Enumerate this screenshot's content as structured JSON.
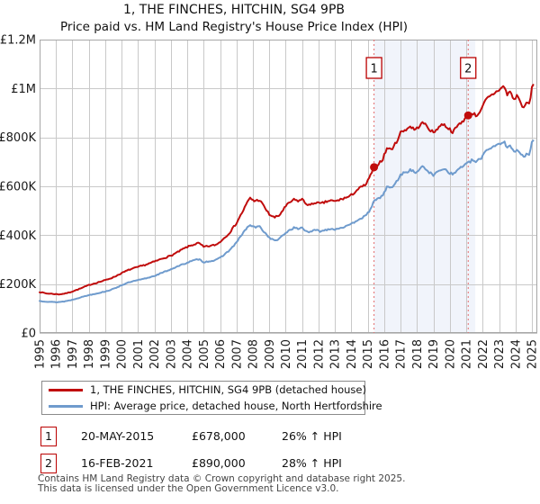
{
  "title": {
    "line1": "1, THE FINCHES, HITCHIN, SG4 9PB",
    "line2": "Price paid vs. HM Land Registry's House Price Index (HPI)"
  },
  "chart_data": {
    "type": "line",
    "title": "1, THE FINCHES, HITCHIN, SG4 9PB — Price paid vs. HPI",
    "value_unit": "GBP thousands",
    "x_axis": {
      "min": 1995,
      "max": 2025.33,
      "ticks": [
        1995,
        1996,
        1997,
        1998,
        1999,
        2000,
        2001,
        2002,
        2003,
        2004,
        2005,
        2006,
        2007,
        2008,
        2009,
        2010,
        2011,
        2012,
        2013,
        2014,
        2015,
        2016,
        2017,
        2018,
        2019,
        2020,
        2021,
        2022,
        2023,
        2024,
        2025
      ]
    },
    "y_axis": {
      "min": 0,
      "max": 1200,
      "ticks": [
        {
          "v": 0,
          "label": "£0"
        },
        {
          "v": 200,
          "label": "£200K"
        },
        {
          "v": 400,
          "label": "£400K"
        },
        {
          "v": 600,
          "label": "£600K"
        },
        {
          "v": 800,
          "label": "£800K"
        },
        {
          "v": 1000,
          "label": "£1M"
        },
        {
          "v": 1200,
          "label": "£1.2M"
        }
      ]
    },
    "grid": true,
    "legend_position": "bottom",
    "styles": {
      "grid_color": "#c9c9c9",
      "border_color": "#a6a6a6",
      "shade_color": "#f1f4fb",
      "dashed_line_color": "#e46d6d",
      "marker_color": "#c00c0c",
      "flag_border_color": "#bb0000",
      "tick_label_color": "#1a1a1a"
    },
    "shaded_region": {
      "from": 2015.38,
      "to": 2021.55
    },
    "sales": [
      {
        "n": "1",
        "year": 2015.38,
        "value": 678,
        "date": "20-MAY-2015",
        "price_label": "£678,000"
      },
      {
        "n": "2",
        "year": 2021.12,
        "value": 890,
        "date": "16-FEB-2021",
        "price_label": "£890,000"
      }
    ],
    "series": [
      {
        "name": "1, THE FINCHES, HITCHIN, SG4 9PB (detached house)",
        "color": "#c00c0c",
        "seed": 7,
        "noise": 0.009,
        "anchors": [
          [
            1995.0,
            168
          ],
          [
            1995.4,
            162
          ],
          [
            1995.8,
            160
          ],
          [
            1996.2,
            158
          ],
          [
            1996.6,
            162
          ],
          [
            1997.0,
            170
          ],
          [
            1997.5,
            182
          ],
          [
            1998.0,
            196
          ],
          [
            1998.5,
            206
          ],
          [
            1999.0,
            216
          ],
          [
            1999.5,
            228
          ],
          [
            2000.0,
            245
          ],
          [
            2000.5,
            260
          ],
          [
            2001.0,
            270
          ],
          [
            2001.5,
            280
          ],
          [
            2002.0,
            292
          ],
          [
            2002.5,
            305
          ],
          [
            2003.0,
            316
          ],
          [
            2003.4,
            330
          ],
          [
            2003.7,
            342
          ],
          [
            2004.0,
            352
          ],
          [
            2004.4,
            362
          ],
          [
            2004.7,
            368
          ],
          [
            2005.0,
            352
          ],
          [
            2005.4,
            356
          ],
          [
            2005.8,
            362
          ],
          [
            2006.2,
            385
          ],
          [
            2006.6,
            412
          ],
          [
            2007.0,
            450
          ],
          [
            2007.4,
            500
          ],
          [
            2007.8,
            552
          ],
          [
            2008.1,
            540
          ],
          [
            2008.4,
            545
          ],
          [
            2008.7,
            515
          ],
          [
            2009.0,
            485
          ],
          [
            2009.3,
            472
          ],
          [
            2009.6,
            480
          ],
          [
            2009.9,
            510
          ],
          [
            2010.2,
            532
          ],
          [
            2010.5,
            545
          ],
          [
            2010.8,
            540
          ],
          [
            2011.0,
            548
          ],
          [
            2011.2,
            530
          ],
          [
            2011.5,
            522
          ],
          [
            2011.8,
            535
          ],
          [
            2012.1,
            528
          ],
          [
            2012.4,
            535
          ],
          [
            2012.7,
            542
          ],
          [
            2013.0,
            538
          ],
          [
            2013.3,
            545
          ],
          [
            2013.6,
            552
          ],
          [
            2013.9,
            558
          ],
          [
            2014.1,
            570
          ],
          [
            2014.4,
            588
          ],
          [
            2014.7,
            600
          ],
          [
            2014.9,
            608
          ],
          [
            2015.1,
            635
          ],
          [
            2015.38,
            678
          ],
          [
            2015.6,
            690
          ],
          [
            2015.9,
            710
          ],
          [
            2016.2,
            760
          ],
          [
            2016.4,
            748
          ],
          [
            2016.7,
            775
          ],
          [
            2017.0,
            820
          ],
          [
            2017.3,
            832
          ],
          [
            2017.6,
            845
          ],
          [
            2017.9,
            830
          ],
          [
            2018.2,
            852
          ],
          [
            2018.4,
            860
          ],
          [
            2018.7,
            838
          ],
          [
            2019.0,
            818
          ],
          [
            2019.3,
            842
          ],
          [
            2019.6,
            855
          ],
          [
            2019.9,
            838
          ],
          [
            2020.2,
            822
          ],
          [
            2020.5,
            850
          ],
          [
            2020.8,
            868
          ],
          [
            2021.12,
            890
          ],
          [
            2021.4,
            900
          ],
          [
            2021.6,
            888
          ],
          [
            2021.9,
            910
          ],
          [
            2022.2,
            955
          ],
          [
            2022.5,
            970
          ],
          [
            2022.8,
            985
          ],
          [
            2023.0,
            995
          ],
          [
            2023.3,
            1010
          ],
          [
            2023.5,
            975
          ],
          [
            2023.7,
            990
          ],
          [
            2023.9,
            950
          ],
          [
            2024.1,
            975
          ],
          [
            2024.35,
            935
          ],
          [
            2024.55,
            920
          ],
          [
            2024.7,
            945
          ],
          [
            2024.85,
            935
          ],
          [
            2025.0,
            1000
          ],
          [
            2025.12,
            1030
          ]
        ]
      },
      {
        "name": "HPI: Average price, detached house, North Hertfordshire",
        "color": "#6f9bcd",
        "seed": 13,
        "noise": 0.008,
        "anchors": [
          [
            1995.0,
            131
          ],
          [
            1995.5,
            128
          ],
          [
            1996.0,
            126
          ],
          [
            1996.5,
            129
          ],
          [
            1997.0,
            136
          ],
          [
            1997.5,
            146
          ],
          [
            1998.0,
            155
          ],
          [
            1998.5,
            162
          ],
          [
            1999.0,
            170
          ],
          [
            1999.5,
            180
          ],
          [
            2000.0,
            196
          ],
          [
            2000.5,
            208
          ],
          [
            2001.0,
            216
          ],
          [
            2001.5,
            224
          ],
          [
            2002.0,
            234
          ],
          [
            2002.5,
            247
          ],
          [
            2003.0,
            261
          ],
          [
            2003.4,
            272
          ],
          [
            2003.7,
            280
          ],
          [
            2004.0,
            288
          ],
          [
            2004.4,
            297
          ],
          [
            2004.7,
            302
          ],
          [
            2005.0,
            290
          ],
          [
            2005.4,
            294
          ],
          [
            2005.8,
            299
          ],
          [
            2006.2,
            318
          ],
          [
            2006.6,
            340
          ],
          [
            2007.0,
            370
          ],
          [
            2007.4,
            410
          ],
          [
            2007.8,
            442
          ],
          [
            2008.1,
            432
          ],
          [
            2008.4,
            436
          ],
          [
            2008.7,
            412
          ],
          [
            2009.0,
            390
          ],
          [
            2009.3,
            378
          ],
          [
            2009.6,
            384
          ],
          [
            2009.9,
            404
          ],
          [
            2010.2,
            420
          ],
          [
            2010.5,
            430
          ],
          [
            2010.8,
            426
          ],
          [
            2011.0,
            432
          ],
          [
            2011.2,
            418
          ],
          [
            2011.5,
            412
          ],
          [
            2011.8,
            422
          ],
          [
            2012.1,
            416
          ],
          [
            2012.4,
            421
          ],
          [
            2012.7,
            427
          ],
          [
            2013.0,
            424
          ],
          [
            2013.3,
            430
          ],
          [
            2013.6,
            435
          ],
          [
            2013.9,
            440
          ],
          [
            2014.1,
            450
          ],
          [
            2014.4,
            464
          ],
          [
            2014.7,
            473
          ],
          [
            2014.9,
            479
          ],
          [
            2015.1,
            500
          ],
          [
            2015.38,
            538
          ],
          [
            2015.6,
            548
          ],
          [
            2015.9,
            562
          ],
          [
            2016.2,
            600
          ],
          [
            2016.4,
            592
          ],
          [
            2016.7,
            612
          ],
          [
            2017.0,
            648
          ],
          [
            2017.3,
            657
          ],
          [
            2017.6,
            667
          ],
          [
            2017.9,
            655
          ],
          [
            2018.2,
            673
          ],
          [
            2018.4,
            680
          ],
          [
            2018.7,
            661
          ],
          [
            2019.0,
            643
          ],
          [
            2019.3,
            664
          ],
          [
            2019.6,
            674
          ],
          [
            2019.9,
            660
          ],
          [
            2020.2,
            647
          ],
          [
            2020.5,
            670
          ],
          [
            2020.8,
            684
          ],
          [
            2021.12,
            695
          ],
          [
            2021.4,
            708
          ],
          [
            2021.6,
            698
          ],
          [
            2021.9,
            715
          ],
          [
            2022.2,
            748
          ],
          [
            2022.5,
            758
          ],
          [
            2022.8,
            768
          ],
          [
            2023.0,
            775
          ],
          [
            2023.3,
            782
          ],
          [
            2023.5,
            755
          ],
          [
            2023.7,
            768
          ],
          [
            2023.9,
            738
          ],
          [
            2024.1,
            756
          ],
          [
            2024.35,
            728
          ],
          [
            2024.55,
            718
          ],
          [
            2024.7,
            736
          ],
          [
            2024.85,
            728
          ],
          [
            2025.0,
            778
          ],
          [
            2025.12,
            800
          ]
        ]
      }
    ]
  },
  "legend": {
    "items": [
      {
        "label": "1, THE FINCHES, HITCHIN, SG4 9PB (detached house)",
        "color": "#c00c0c"
      },
      {
        "label": "HPI: Average price, detached house, North Hertfordshire",
        "color": "#6f9bcd"
      }
    ]
  },
  "transactions": [
    {
      "num": "1",
      "date": "20-MAY-2015",
      "price": "£678,000",
      "hpi": "26% ↑ HPI"
    },
    {
      "num": "2",
      "date": "16-FEB-2021",
      "price": "£890,000",
      "hpi": "28% ↑ HPI"
    }
  ],
  "footer": {
    "line1": "Contains HM Land Registry data © Crown copyright and database right 2025.",
    "line2": "This data is licensed under the Open Government Licence v3.0."
  }
}
